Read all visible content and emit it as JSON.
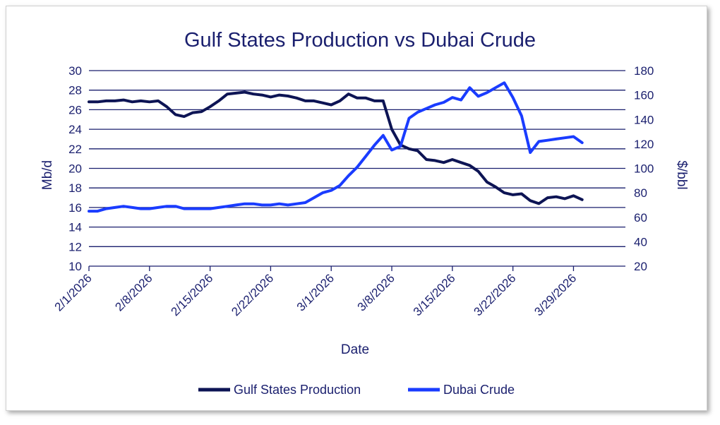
{
  "chart_data": {
    "type": "line",
    "title": "Gulf States Production vs Dubai Crude",
    "xlabel": "Date",
    "ylabel_left": "Mb/d",
    "ylabel_right": "$/bbl",
    "ylim_left": [
      10,
      30
    ],
    "ylim_right": [
      20,
      180
    ],
    "yticks_left": [
      10,
      12,
      14,
      16,
      18,
      20,
      22,
      24,
      26,
      28,
      30
    ],
    "yticks_right": [
      20,
      40,
      60,
      80,
      100,
      120,
      140,
      160,
      180
    ],
    "xlim": [
      "2026-02-01",
      "2026-04-04"
    ],
    "xticks": [
      {
        "date": "2026-02-01",
        "label": "2/1/2026"
      },
      {
        "date": "2026-02-08",
        "label": "2/8/2026"
      },
      {
        "date": "2026-02-15",
        "label": "2/15/2026"
      },
      {
        "date": "2026-02-22",
        "label": "2/22/2026"
      },
      {
        "date": "2026-03-01",
        "label": "3/1/2026"
      },
      {
        "date": "2026-03-08",
        "label": "3/8/2026"
      },
      {
        "date": "2026-03-15",
        "label": "3/15/2026"
      },
      {
        "date": "2026-03-22",
        "label": "3/22/2026"
      },
      {
        "date": "2026-03-29",
        "label": "3/29/2026"
      }
    ],
    "grid": "horizontal",
    "legend": "bottom",
    "series": [
      {
        "name": "Gulf States Production",
        "axis": "left",
        "color": "#0d1454",
        "points": [
          [
            "2026-02-01",
            26.8
          ],
          [
            "2026-02-02",
            26.8
          ],
          [
            "2026-02-03",
            26.9
          ],
          [
            "2026-02-04",
            26.9
          ],
          [
            "2026-02-05",
            27.0
          ],
          [
            "2026-02-06",
            26.8
          ],
          [
            "2026-02-07",
            26.9
          ],
          [
            "2026-02-08",
            26.8
          ],
          [
            "2026-02-09",
            26.9
          ],
          [
            "2026-02-10",
            26.3
          ],
          [
            "2026-02-11",
            25.5
          ],
          [
            "2026-02-12",
            25.3
          ],
          [
            "2026-02-13",
            25.7
          ],
          [
            "2026-02-14",
            25.8
          ],
          [
            "2026-02-15",
            26.3
          ],
          [
            "2026-02-16",
            26.9
          ],
          [
            "2026-02-17",
            27.6
          ],
          [
            "2026-02-18",
            27.7
          ],
          [
            "2026-02-19",
            27.8
          ],
          [
            "2026-02-20",
            27.6
          ],
          [
            "2026-02-21",
            27.5
          ],
          [
            "2026-02-22",
            27.3
          ],
          [
            "2026-02-23",
            27.5
          ],
          [
            "2026-02-24",
            27.4
          ],
          [
            "2026-02-25",
            27.2
          ],
          [
            "2026-02-26",
            26.9
          ],
          [
            "2026-02-27",
            26.9
          ],
          [
            "2026-02-28",
            26.7
          ],
          [
            "2026-03-01",
            26.5
          ],
          [
            "2026-03-02",
            26.9
          ],
          [
            "2026-03-03",
            27.6
          ],
          [
            "2026-03-04",
            27.2
          ],
          [
            "2026-03-05",
            27.2
          ],
          [
            "2026-03-06",
            26.9
          ],
          [
            "2026-03-07",
            26.9
          ],
          [
            "2026-03-08",
            24.0
          ],
          [
            "2026-03-09",
            22.4
          ],
          [
            "2026-03-10",
            22.0
          ],
          [
            "2026-03-11",
            21.8
          ],
          [
            "2026-03-12",
            20.9
          ],
          [
            "2026-03-13",
            20.8
          ],
          [
            "2026-03-14",
            20.6
          ],
          [
            "2026-03-15",
            20.9
          ],
          [
            "2026-03-16",
            20.6
          ],
          [
            "2026-03-17",
            20.3
          ],
          [
            "2026-03-18",
            19.7
          ],
          [
            "2026-03-19",
            18.6
          ],
          [
            "2026-03-20",
            18.1
          ],
          [
            "2026-03-21",
            17.5
          ],
          [
            "2026-03-22",
            17.3
          ],
          [
            "2026-03-23",
            17.4
          ],
          [
            "2026-03-24",
            16.7
          ],
          [
            "2026-03-25",
            16.4
          ],
          [
            "2026-03-26",
            17.0
          ],
          [
            "2026-03-27",
            17.1
          ],
          [
            "2026-03-28",
            16.9
          ],
          [
            "2026-03-29",
            17.2
          ],
          [
            "2026-03-30",
            16.8
          ]
        ]
      },
      {
        "name": "Dubai Crude",
        "axis": "right",
        "color": "#1a3cff",
        "points": [
          [
            "2026-02-01",
            65
          ],
          [
            "2026-02-02",
            65
          ],
          [
            "2026-02-03",
            67
          ],
          [
            "2026-02-04",
            68
          ],
          [
            "2026-02-05",
            69
          ],
          [
            "2026-02-06",
            68
          ],
          [
            "2026-02-07",
            67
          ],
          [
            "2026-02-08",
            67
          ],
          [
            "2026-02-09",
            68
          ],
          [
            "2026-02-10",
            69
          ],
          [
            "2026-02-11",
            69
          ],
          [
            "2026-02-12",
            67
          ],
          [
            "2026-02-13",
            67
          ],
          [
            "2026-02-14",
            67
          ],
          [
            "2026-02-15",
            67
          ],
          [
            "2026-02-16",
            68
          ],
          [
            "2026-02-17",
            69
          ],
          [
            "2026-02-18",
            70
          ],
          [
            "2026-02-19",
            71
          ],
          [
            "2026-02-20",
            71
          ],
          [
            "2026-02-21",
            70
          ],
          [
            "2026-02-22",
            70
          ],
          [
            "2026-02-23",
            71
          ],
          [
            "2026-02-24",
            70
          ],
          [
            "2026-02-25",
            71
          ],
          [
            "2026-02-26",
            72
          ],
          [
            "2026-02-27",
            76
          ],
          [
            "2026-02-28",
            80
          ],
          [
            "2026-03-01",
            82
          ],
          [
            "2026-03-02",
            86
          ],
          [
            "2026-03-03",
            94
          ],
          [
            "2026-03-04",
            101
          ],
          [
            "2026-03-05",
            110
          ],
          [
            "2026-03-06",
            119
          ],
          [
            "2026-03-07",
            127
          ],
          [
            "2026-03-08",
            115
          ],
          [
            "2026-03-09",
            118
          ],
          [
            "2026-03-10",
            141
          ],
          [
            "2026-03-11",
            146
          ],
          [
            "2026-03-12",
            149
          ],
          [
            "2026-03-13",
            152
          ],
          [
            "2026-03-14",
            154
          ],
          [
            "2026-03-15",
            158
          ],
          [
            "2026-03-16",
            156
          ],
          [
            "2026-03-17",
            166
          ],
          [
            "2026-03-18",
            159
          ],
          [
            "2026-03-19",
            162
          ],
          [
            "2026-03-20",
            166
          ],
          [
            "2026-03-21",
            170
          ],
          [
            "2026-03-22",
            158
          ],
          [
            "2026-03-23",
            143
          ],
          [
            "2026-03-24",
            113
          ],
          [
            "2026-03-25",
            122
          ],
          [
            "2026-03-26",
            123
          ],
          [
            "2026-03-27",
            124
          ],
          [
            "2026-03-28",
            125
          ],
          [
            "2026-03-29",
            126
          ],
          [
            "2026-03-30",
            121
          ]
        ]
      }
    ]
  }
}
